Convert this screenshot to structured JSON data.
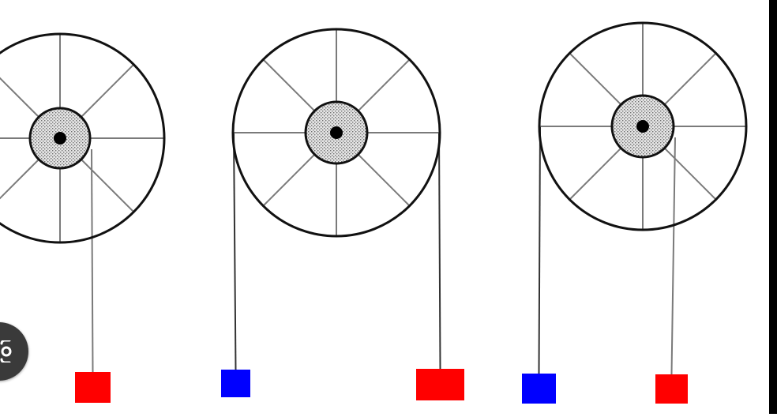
{
  "diagram": {
    "pulleys": [
      {
        "name": "pulley-1",
        "rim_labels": [],
        "ropes": [
          {
            "side": "inner-right",
            "mass": {
              "color": "#ff0000",
              "size": "small"
            }
          }
        ]
      },
      {
        "name": "pulley-2",
        "rim_labels": [],
        "ropes": [
          {
            "side": "rim-left",
            "mass": {
              "color": "#0000ff",
              "size": "small"
            }
          },
          {
            "side": "rim-right",
            "mass": {
              "color": "#ff0000",
              "size": "large"
            }
          }
        ]
      },
      {
        "name": "pulley-3",
        "rim_labels": [],
        "ropes": [
          {
            "side": "rim-left",
            "mass": {
              "color": "#0000ff",
              "size": "small"
            }
          },
          {
            "side": "inner-right",
            "mass": {
              "color": "#ff0000",
              "size": "small"
            }
          }
        ]
      }
    ]
  },
  "colors": {
    "red_mass": "#ff0000",
    "blue_mass": "#0000ff",
    "line": "#111111",
    "spoke": "#7a7a7a",
    "hub_fill": "#d9d9d9"
  },
  "overlay": {
    "lens_icon": "google-lens-icon"
  }
}
